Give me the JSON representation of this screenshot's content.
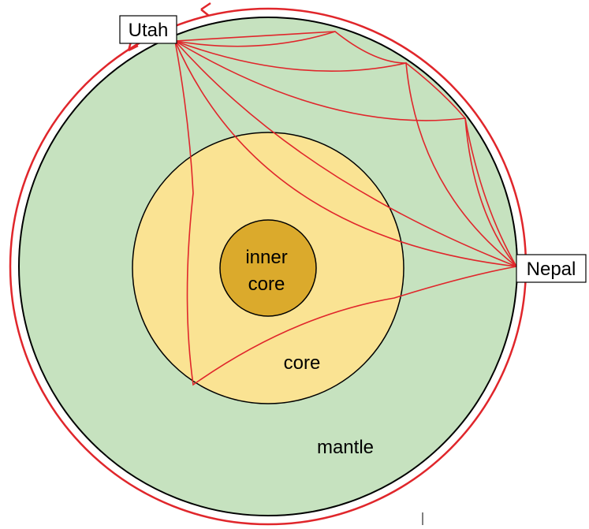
{
  "labels": {
    "utah": "Utah",
    "nepal": "Nepal",
    "inner_core": [
      "inner",
      "core"
    ],
    "core": "core",
    "mantle": "mantle"
  }
}
